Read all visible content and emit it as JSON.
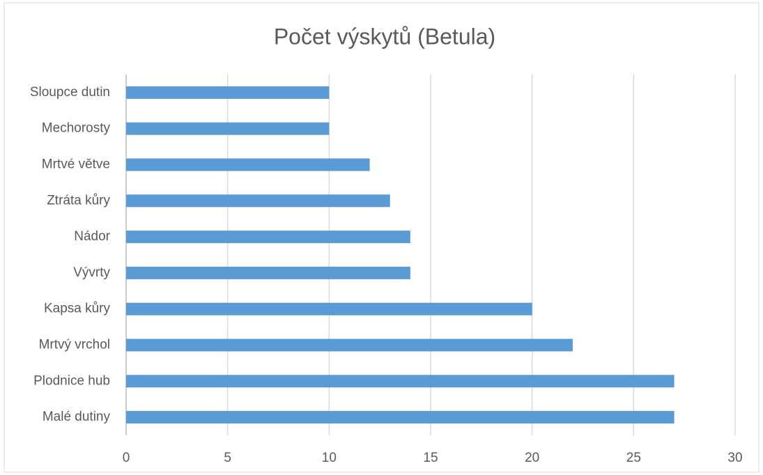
{
  "chart_data": {
    "type": "barh",
    "title": "Počet výskytů (Betula)",
    "categories": [
      "Sloupce dutin",
      "Mechorosty",
      "Mrtvé větve",
      "Ztráta kůry",
      "Nádor",
      "Vývrty",
      "Kapsa kůry",
      "Mrtvý vrchol",
      "Plodnice hub",
      "Malé dutiny"
    ],
    "values": [
      10,
      10,
      12,
      13,
      14,
      14,
      20,
      22,
      27,
      27
    ],
    "color": "#5b9bd5",
    "xlim": [
      0,
      30
    ],
    "xticks": [
      0,
      5,
      10,
      15,
      20,
      25,
      30
    ],
    "grid": true
  }
}
